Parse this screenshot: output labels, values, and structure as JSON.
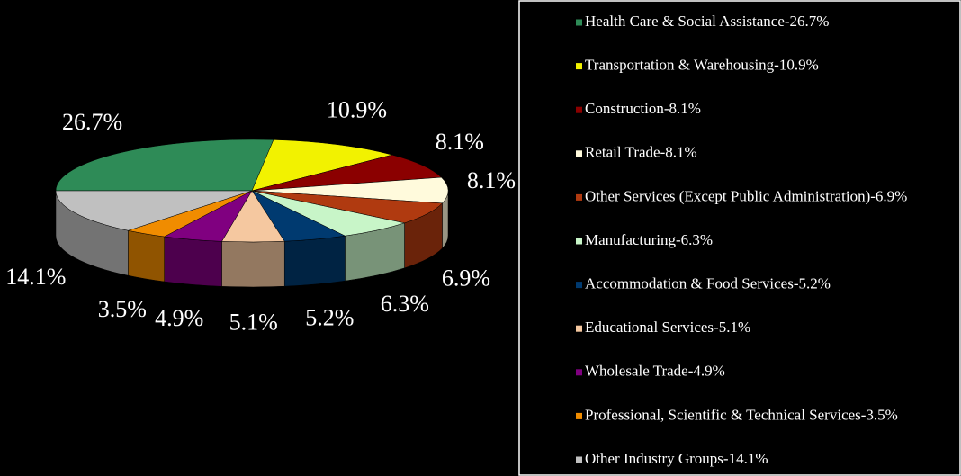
{
  "chart_data": {
    "type": "pie3d",
    "categories": [
      "Health Care & Social Assistance-26.7%",
      "Transportation & Warehousing-10.9%",
      "Construction-8.1%",
      "Retail Trade-8.1%",
      "Other Services (Except Public Administration)-6.9%",
      "Manufacturing-6.3%",
      "Accommodation & Food Services-5.2%",
      "Educational Services-5.1%",
      "Wholesale Trade-4.9%",
      "Professional, Scientific & Technical Services-3.5%",
      "Other Industry Groups-14.1%"
    ],
    "values": [
      26.7,
      10.9,
      8.1,
      8.1,
      6.9,
      6.3,
      5.2,
      5.1,
      4.9,
      3.5,
      14.1
    ],
    "value_labels": [
      "26.7%",
      "10.9%",
      "8.1%",
      "8.1%",
      "6.9%",
      "6.3%",
      "5.2%",
      "5.1%",
      "4.9%",
      "3.5%",
      "14.1%"
    ],
    "colors": [
      "#2e8b57",
      "#f2f200",
      "#8b0000",
      "#fffadc",
      "#b03a10",
      "#c8f5c8",
      "#003a70",
      "#f5c8a0",
      "#800080",
      "#f08c00",
      "#c0c0c0"
    ]
  }
}
